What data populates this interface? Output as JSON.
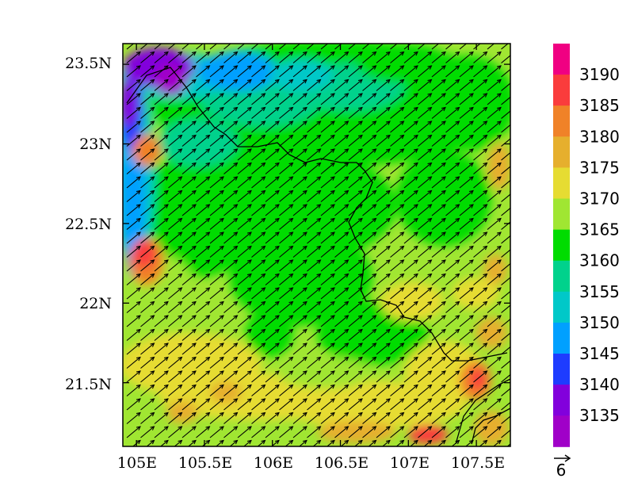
{
  "map": {
    "lon_labels": [
      "105E",
      "105.5E",
      "106E",
      "106.5E",
      "107E",
      "107.5E"
    ],
    "lon_values": [
      105,
      105.5,
      106,
      106.5,
      107,
      107.5
    ],
    "lat_labels": [
      "23.5N",
      "23N",
      "22.5N",
      "22N",
      "21.5N"
    ],
    "lat_values": [
      23.5,
      23,
      22.5,
      22,
      21.5
    ],
    "lon_range": [
      104.9,
      107.75
    ],
    "lat_range": [
      21.1,
      23.63
    ],
    "field": "contour fill",
    "vectors": "wind arrows, uniform southwest-to-northeast flow"
  },
  "colorbar": {
    "labels": [
      "3135",
      "3140",
      "3145",
      "3150",
      "3155",
      "3160",
      "3165",
      "3170",
      "3175",
      "3180",
      "3185",
      "3190"
    ],
    "colors": [
      "#a000c8",
      "#8200dc",
      "#1e3cff",
      "#00a0ff",
      "#00c8c8",
      "#00d28c",
      "#00dc00",
      "#a0e632",
      "#e6dc32",
      "#e6af2d",
      "#f08228",
      "#fa3c3c",
      "#f00082"
    ]
  },
  "reference_vector": {
    "label": "6"
  }
}
